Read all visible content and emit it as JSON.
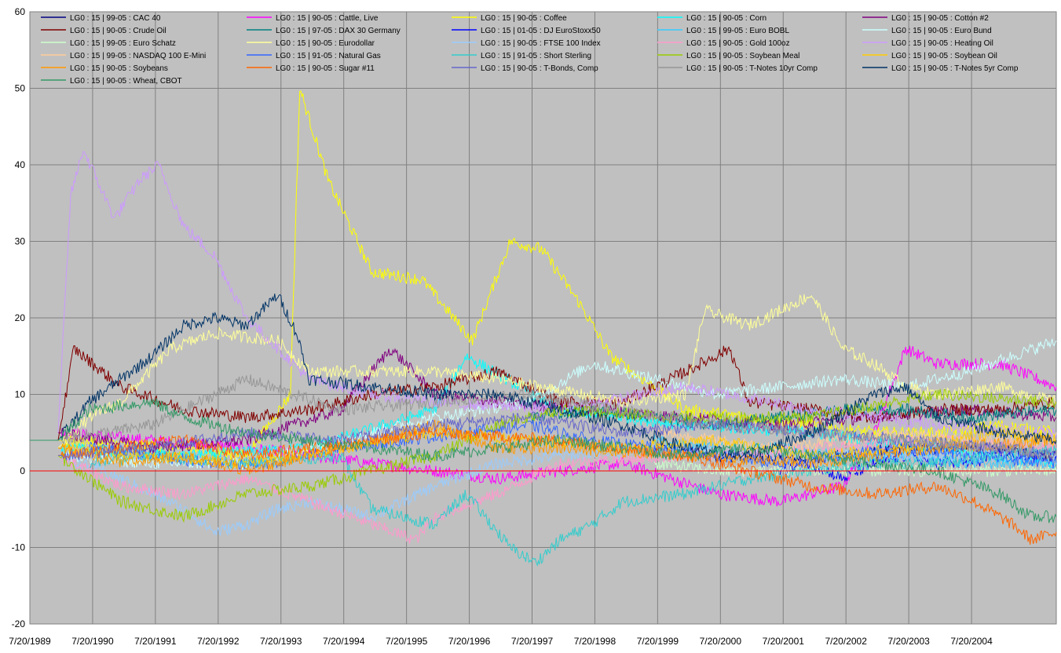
{
  "chart_data": {
    "type": "line",
    "title": "",
    "xlabel": "",
    "ylabel": "",
    "ylim": [
      -20,
      60
    ],
    "yticks": [
      -20,
      -10,
      0,
      10,
      20,
      30,
      40,
      50,
      60
    ],
    "xlim": [
      1989.55,
      2005.9
    ],
    "x_tick_labels": [
      "7/20/1989",
      "7/20/1990",
      "7/20/1991",
      "7/20/1992",
      "7/20/1993",
      "7/20/1994",
      "7/20/1995",
      "7/20/1996",
      "7/20/1997",
      "7/20/1998",
      "7/20/1999",
      "7/20/2000",
      "7/20/2001",
      "7/20/2002",
      "7/20/2003",
      "7/20/2004"
    ],
    "x_tick_values": [
      1989.55,
      1990.55,
      1991.55,
      1992.55,
      1993.55,
      1994.55,
      1995.55,
      1996.55,
      1997.55,
      1998.55,
      1999.55,
      2000.55,
      2001.55,
      2002.55,
      2003.55,
      2004.55
    ],
    "grid": true,
    "legend_position": "top",
    "plot_background": "#c0c0c0",
    "zero_line_color": "#ff0000",
    "series": [
      {
        "name": "LG0 : 15 | 99-05 : CAC 40",
        "color": "#000080",
        "x": [
          1999.5,
          2000.5,
          2001.5,
          2002.5,
          2003.5,
          2004.5,
          2005.9
        ],
        "values": [
          3,
          2,
          1.5,
          2,
          3,
          3,
          2
        ]
      },
      {
        "name": "LG0 : 15 | 90-05 : Cattle, Live",
        "color": "#ff00ff",
        "x": [
          1990.0,
          1991.5,
          1993.0,
          1995.0,
          1997.0,
          1999.0,
          2000.5,
          2001.5,
          2002.5,
          2003.0,
          2003.5,
          2004.0,
          2005.0,
          2005.9
        ],
        "values": [
          5,
          4,
          3,
          1,
          -1,
          1,
          -3,
          -4,
          -2,
          5,
          16,
          14,
          14,
          11
        ]
      },
      {
        "name": "LG0 : 15 | 90-05 : Coffee",
        "color": "#ffff00",
        "x": [
          1990.0,
          1992.0,
          1993.0,
          1993.7,
          1993.85,
          1994.3,
          1995.0,
          1995.8,
          1996.6,
          1997.2,
          1997.7,
          1998.3,
          1998.8,
          2000.0,
          2001.0,
          2002.0,
          2003.0,
          2004.0,
          2005.0,
          2005.9
        ],
        "values": [
          4,
          3,
          2,
          10,
          50,
          38,
          26,
          25,
          17,
          30,
          29,
          22,
          15,
          8,
          7,
          6,
          5,
          5,
          6,
          5
        ]
      },
      {
        "name": "LG0 : 15 | 90-05 : Corn",
        "color": "#00ffff",
        "x": [
          1990.0,
          1992.0,
          1994.0,
          1996.0,
          1996.5,
          1998.0,
          2000.0,
          2002.0,
          2004.0,
          2005.9
        ],
        "values": [
          3,
          2,
          3,
          8,
          15,
          8,
          6,
          5,
          3,
          1
        ]
      },
      {
        "name": "LG0 : 15 | 90-05 : Cotton #2",
        "color": "#800080",
        "x": [
          1990.0,
          1991.5,
          1993.0,
          1994.5,
          1995.3,
          1996.0,
          1997.0,
          1998.5,
          2000.0,
          2001.5,
          2003.0,
          2004.5,
          2005.9
        ],
        "values": [
          5,
          3,
          4,
          8,
          16,
          10,
          9,
          8,
          7,
          6,
          7,
          8,
          7
        ]
      },
      {
        "name": "LG0 : 15 | 90-05 : Crude Oil",
        "color": "#800000",
        "x": [
          1990.0,
          1990.25,
          1991.0,
          1992.0,
          1993.0,
          1994.0,
          1995.0,
          1996.0,
          1997.0,
          1998.0,
          1999.0,
          2000.0,
          2000.7,
          2001.0,
          2002.0,
          2003.0,
          2004.0,
          2005.0,
          2005.9
        ],
        "values": [
          4,
          16,
          11,
          8,
          7,
          8,
          10,
          11,
          13,
          9,
          9,
          13,
          16,
          9,
          8,
          7,
          8,
          8,
          9
        ]
      },
      {
        "name": "LG0 : 15 | 97-05 : DAX 30 Germany",
        "color": "#008080",
        "x": [
          1997.5,
          1998.5,
          1999.5,
          2000.5,
          2001.5,
          2002.5,
          2003.5,
          2004.5,
          2005.9
        ],
        "values": [
          7,
          8,
          7,
          6,
          7,
          8,
          8,
          7,
          8
        ]
      },
      {
        "name": "LG0 : 15 | 01-05 : DJ EuroStoxx50",
        "color": "#0000ff",
        "x": [
          2001.5,
          2002.0,
          2002.5,
          2003.0,
          2003.5,
          2004.0,
          2004.5,
          2005.0,
          2005.9
        ],
        "values": [
          0,
          1,
          -1,
          1,
          2,
          1,
          1,
          2,
          2
        ]
      },
      {
        "name": "LG0 : 15 | 99-05 : Euro BOBL",
        "color": "#33ccff",
        "x": [
          1999.5,
          2000.5,
          2001.5,
          2002.5,
          2003.5,
          2004.5,
          2005.9
        ],
        "values": [
          4,
          3,
          3,
          2,
          2,
          1,
          1
        ]
      },
      {
        "name": "LG0 : 15 | 90-05 : Euro Bund",
        "color": "#ccffff",
        "x": [
          1990.0,
          1991.5,
          1993.0,
          1994.5,
          1996.0,
          1997.5,
          1998.5,
          1999.5,
          2000.5,
          2001.5,
          2002.5,
          2003.5,
          2004.5,
          2005.9
        ],
        "values": [
          2,
          1,
          1,
          4,
          7,
          9,
          14,
          12,
          10,
          11,
          12,
          11,
          13,
          17
        ]
      },
      {
        "name": "LG0 : 15 | 99-05 : Euro Schatz",
        "color": "#ccffcc",
        "x": [
          1999.5,
          2000.5,
          2001.5,
          2002.5,
          2003.5,
          2004.5,
          2005.9
        ],
        "values": [
          1,
          0,
          0,
          0,
          0,
          0,
          0
        ]
      },
      {
        "name": "LG0 : 15 | 90-05 : Eurodollar",
        "color": "#ffff99",
        "x": [
          1990.0,
          1990.5,
          1991.0,
          1991.8,
          1992.5,
          1993.5,
          1994.0,
          1995.0,
          1996.0,
          1997.0,
          1999.0,
          2000.0,
          2000.3,
          2001.0,
          2002.0,
          2002.5,
          2003.0,
          2003.5,
          2004.0,
          2005.0,
          2005.9
        ],
        "values": [
          3,
          7,
          9,
          16,
          18,
          17,
          13,
          13,
          13,
          12,
          9,
          10,
          21,
          19,
          23,
          16,
          14,
          11,
          10,
          11,
          9
        ]
      },
      {
        "name": "LG0 : 15 | 90-05 : FTSE 100 Index",
        "color": "#99ccff",
        "x": [
          1990.0,
          1991.0,
          1992.0,
          1992.5,
          1993.0,
          1993.5,
          1994.0,
          1995.0,
          1996.0,
          1997.0,
          1998.0,
          2000.0,
          2002.0,
          2004.0,
          2005.9
        ],
        "values": [
          2,
          -1,
          -5,
          -8,
          -7,
          -5,
          -4,
          -6,
          -2,
          1,
          2,
          3,
          2,
          2,
          2
        ]
      },
      {
        "name": "LG0 : 15 | 90-05 : Gold 100oz",
        "color": "#ff99cc",
        "x": [
          1990.0,
          1991.0,
          1992.0,
          1993.0,
          1994.0,
          1995.0,
          1995.7,
          1996.0,
          1997.0,
          1998.0,
          2000.0,
          2002.0,
          2004.0,
          2005.9
        ],
        "values": [
          2,
          -2,
          -3,
          -1,
          -4,
          -7,
          -9,
          -6,
          -3,
          1,
          2,
          3,
          4,
          3
        ]
      },
      {
        "name": "LG0 : 15 | 90-05 : Heating Oil",
        "color": "#cc99ff",
        "x": [
          1990.0,
          1990.2,
          1990.4,
          1990.9,
          1991.3,
          1991.6,
          1992.0,
          1992.5,
          1993.0,
          1994.0,
          1995.0,
          1996.0,
          1998.0,
          2000.0,
          2002.0,
          2004.0,
          2005.9
        ],
        "values": [
          5,
          36,
          42,
          33,
          38,
          40,
          32,
          28,
          20,
          12,
          10,
          9,
          8,
          11,
          8,
          6,
          5
        ]
      },
      {
        "name": "LG0 : 15 | 99-05 : NASDAQ 100 E-Mini",
        "color": "#ffcc99",
        "x": [
          1999.5,
          2000.5,
          2001.5,
          2002.5,
          2003.5,
          2004.5,
          2005.9
        ],
        "values": [
          5,
          4,
          3,
          4,
          5,
          4,
          4
        ]
      },
      {
        "name": "LG0 : 15 | 91-05 : Natural Gas",
        "color": "#3366ff",
        "x": [
          1990.5,
          1991.5,
          1992.5,
          1993.5,
          1994.5,
          1995.5,
          1996.5,
          1997.5,
          1998.5,
          1999.5,
          2000.5,
          2001.5,
          2002.5,
          2003.5,
          2004.5,
          2005.9
        ],
        "values": [
          3,
          2,
          1,
          1,
          3,
          4,
          5,
          6,
          4,
          3,
          2,
          1,
          2,
          3,
          2,
          1
        ]
      },
      {
        "name": "LG0 : 15 | 91-05 : Short Sterling",
        "color": "#33cccc",
        "x": [
          1990.5,
          1991.5,
          1993.0,
          1994.5,
          1995.0,
          1996.0,
          1996.5,
          1997.2,
          1997.6,
          1998.0,
          1998.5,
          1999.0,
          2000.0,
          2001.0,
          2002.0,
          2003.0,
          2004.0,
          2005.0,
          2005.9
        ],
        "values": [
          1,
          2,
          1,
          2,
          -5,
          -7,
          -3,
          -10,
          -12,
          -9,
          -7,
          -4,
          -3,
          -1,
          0,
          1,
          1,
          2,
          3
        ]
      },
      {
        "name": "LG0 : 15 | 90-05 : Soybean Meal",
        "color": "#99cc00",
        "x": [
          1990.0,
          1991.0,
          1992.0,
          1993.0,
          1994.0,
          1995.0,
          1996.0,
          1997.0,
          1998.0,
          2000.0,
          2002.0,
          2004.0,
          2005.9
        ],
        "values": [
          2,
          -4,
          -6,
          -3,
          -2,
          0,
          2,
          6,
          8,
          7,
          7,
          10,
          9
        ]
      },
      {
        "name": "LG0 : 15 | 90-05 : Soybean Oil",
        "color": "#ffcc00",
        "x": [
          1990.0,
          1991.5,
          1993.0,
          1994.5,
          1996.0,
          1997.5,
          1999.0,
          2000.5,
          2002.0,
          2003.5,
          2005.0,
          2005.9
        ],
        "values": [
          3,
          2,
          1,
          3,
          5,
          4,
          3,
          4,
          2,
          3,
          5,
          4
        ]
      },
      {
        "name": "LG0 : 15 | 90-05 : Soybeans",
        "color": "#ff9900",
        "x": [
          1990.0,
          1991.0,
          1992.0,
          1993.0,
          1994.0,
          1995.0,
          1996.0,
          1997.0,
          1998.0,
          2000.0,
          2002.0,
          2004.0,
          2005.9
        ],
        "values": [
          3,
          1,
          2,
          0,
          2,
          4,
          6,
          3,
          3,
          2,
          1,
          3,
          4
        ]
      },
      {
        "name": "LG0 : 15 | 90-05 : Sugar #11",
        "color": "#ff6600",
        "x": [
          1990.0,
          1991.0,
          1992.0,
          1993.0,
          1994.0,
          1996.0,
          1998.0,
          2000.0,
          2001.0,
          2002.0,
          2003.0,
          2004.0,
          2004.6,
          2005.2,
          2005.5,
          2005.9
        ],
        "values": [
          2,
          3,
          4,
          2,
          3,
          5,
          4,
          2,
          0,
          -2,
          -3,
          -2,
          -4,
          -7,
          -9,
          -8
        ]
      },
      {
        "name": "LG0 : 15 | 90-05 : T-Bonds, Comp",
        "color": "#6666cc",
        "x": [
          1990.0,
          1991.5,
          1993.0,
          1994.5,
          1996.0,
          1997.5,
          1999.0,
          2000.5,
          2002.0,
          2003.5,
          2005.0,
          2005.9
        ],
        "values": [
          2,
          3,
          5,
          4,
          6,
          7,
          5,
          6,
          5,
          4,
          3,
          2
        ]
      },
      {
        "name": "LG0 : 15 | 90-05 : T-Notes 10yr Comp",
        "color": "#969696",
        "x": [
          1990.0,
          1991.5,
          1993.0,
          1994.5,
          1996.0,
          1997.5,
          1999.0,
          2000.5,
          2002.0,
          2003.5,
          2005.0,
          2005.9
        ],
        "values": [
          4,
          6,
          12,
          8,
          9,
          10,
          8,
          6,
          5,
          4,
          3,
          2
        ]
      },
      {
        "name": "LG0 : 15 | 90-05 : T-Notes 5yr Comp",
        "color": "#003366",
        "x": [
          1990.0,
          1990.5,
          1991.5,
          1992.0,
          1992.5,
          1993.0,
          1993.5,
          1993.8,
          1994.0,
          1995.0,
          1996.0,
          1997.0,
          1998.0,
          1999.0,
          2000.0,
          2001.0,
          2002.0,
          2003.0,
          2003.5,
          2004.0,
          2005.0,
          2005.9
        ],
        "values": [
          4,
          9,
          15,
          19,
          20,
          19,
          23,
          18,
          12,
          11,
          10,
          10,
          8,
          6,
          3,
          2,
          5,
          10,
          11,
          7,
          5,
          4
        ]
      },
      {
        "name": "LG0 : 15 | 90-05 : Wheat, CBOT",
        "color": "#339966",
        "x": [
          1989.55,
          1990.0,
          1990.5,
          1991.5,
          1992.0,
          1993.0,
          1994.0,
          1995.0,
          1996.0,
          1997.0,
          1998.0,
          1999.0,
          2000.0,
          2001.0,
          2002.0,
          2003.0,
          2004.0,
          2005.0,
          2005.5,
          2005.9
        ],
        "values": [
          4,
          4,
          8,
          9,
          7,
          5,
          4,
          3,
          2,
          3,
          4,
          3,
          2,
          3,
          2,
          1,
          0,
          -3,
          -6,
          -6
        ]
      }
    ]
  }
}
